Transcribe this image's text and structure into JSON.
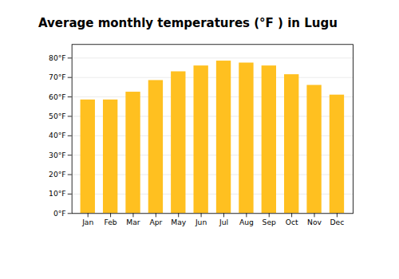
{
  "chart_data": {
    "type": "bar",
    "title": "Average monthly temperatures (°F ) in Lugu",
    "categories": [
      "Jan",
      "Feb",
      "Mar",
      "Apr",
      "May",
      "Jun",
      "Jul",
      "Aug",
      "Sep",
      "Oct",
      "Nov",
      "Dec"
    ],
    "values": [
      58.5,
      58.5,
      62.5,
      68.5,
      73.0,
      76.0,
      78.5,
      77.5,
      76.0,
      71.5,
      66.0,
      61.0
    ],
    "color": "#FFC020",
    "ylim": [
      0,
      87
    ],
    "yticks": [
      {
        "value": 0,
        "label": "0°F"
      },
      {
        "value": 10,
        "label": "10°F"
      },
      {
        "value": 20,
        "label": "20°F"
      },
      {
        "value": 30,
        "label": "30°F"
      },
      {
        "value": 40,
        "label": "40°F"
      },
      {
        "value": 50,
        "label": "50°F"
      },
      {
        "value": 60,
        "label": "60°F"
      },
      {
        "value": 70,
        "label": "70°F"
      },
      {
        "value": 80,
        "label": "80°F"
      }
    ],
    "grid": true
  }
}
